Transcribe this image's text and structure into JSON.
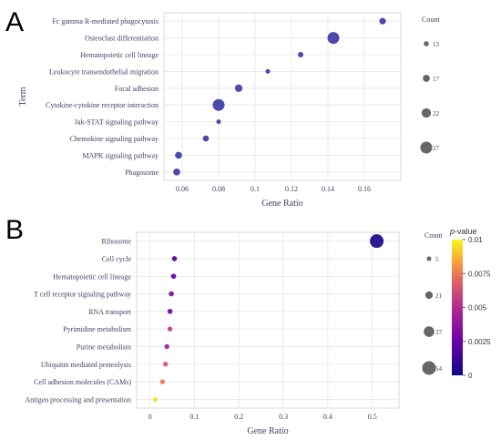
{
  "chart_data": [
    {
      "panel": "A",
      "type": "scatter",
      "xlabel": "Gene Ratio",
      "ylabel": "Term",
      "xlim": [
        0.05,
        0.18
      ],
      "xticks": [
        0.06,
        0.08,
        0.1,
        0.12,
        0.14,
        0.16
      ],
      "xtick_labels": [
        "0.06",
        "0.08",
        "0.1",
        "0.12",
        "0.14",
        "0.16"
      ],
      "grid": true,
      "legend_position": "right",
      "color": "#3b3ba8",
      "categories": [
        "Fc gamma R-mediated phagocytosis",
        "Osteoclast differentiation",
        "Hematopoietic cell lineage",
        "Leukocyte transendothelial migration",
        "Focal adhesion",
        "Cytokine-cytokine receptor interaction",
        "Jak-STAT signaling pathway",
        "Chemokine signaling pathway",
        "MAPK signaling pathway",
        "Phagosome"
      ],
      "points": [
        {
          "term": "Fc gamma R-mediated phagocytosis",
          "x": 0.17,
          "count": 16
        },
        {
          "term": "Osteoclast differentiation",
          "x": 0.143,
          "count": 27
        },
        {
          "term": "Hematopoietic cell lineage",
          "x": 0.125,
          "count": 14
        },
        {
          "term": "Leukocyte transendothelial migration",
          "x": 0.107,
          "count": 12
        },
        {
          "term": "Focal adhesion",
          "x": 0.091,
          "count": 18
        },
        {
          "term": "Cytokine-cytokine receptor interaction",
          "x": 0.08,
          "count": 27
        },
        {
          "term": "Jak-STAT signaling pathway",
          "x": 0.08,
          "count": 12
        },
        {
          "term": "Chemokine signaling pathway",
          "x": 0.073,
          "count": 15
        },
        {
          "term": "MAPK signaling pathway",
          "x": 0.058,
          "count": 17
        },
        {
          "term": "Phagosome",
          "x": 0.057,
          "count": 17
        }
      ],
      "size_legend": {
        "title": "Count",
        "values": [
          13,
          17,
          22,
          27
        ]
      }
    },
    {
      "panel": "B",
      "type": "scatter",
      "xlabel": "Gene Ratio",
      "xlim": [
        -0.03,
        0.56
      ],
      "xticks": [
        0,
        0.1,
        0.2,
        0.3,
        0.4,
        0.5
      ],
      "xtick_labels": [
        "0",
        "0.1",
        "0.2",
        "0.3",
        "0.4",
        "0.5"
      ],
      "grid": true,
      "legend_position": "right",
      "categories": [
        "Ribosome",
        "Cell cycle",
        "Hematopoietic cell lineage",
        "T cell receptor signaling pathway",
        "RNA transport",
        "Pyrimidine metabolism",
        "Purine metabolism",
        "Ubiquitin mediated proteolysis",
        "Cell adhesion molecules (CAMs)",
        "Antigen processing and presentation"
      ],
      "points": [
        {
          "term": "Ribosome",
          "x": 0.51,
          "count": 54,
          "pvalue": 0.0003
        },
        {
          "term": "Cell cycle",
          "x": 0.055,
          "count": 8,
          "pvalue": 0.0015
        },
        {
          "term": "Hematopoietic cell lineage",
          "x": 0.053,
          "count": 8,
          "pvalue": 0.0018
        },
        {
          "term": "T cell receptor signaling pathway",
          "x": 0.048,
          "count": 8,
          "pvalue": 0.0025
        },
        {
          "term": "RNA transport",
          "x": 0.045,
          "count": 8,
          "pvalue": 0.0022
        },
        {
          "term": "Pyrimidine metabolism",
          "x": 0.045,
          "count": 7,
          "pvalue": 0.0045
        },
        {
          "term": "Purine metabolism",
          "x": 0.038,
          "count": 7,
          "pvalue": 0.0035
        },
        {
          "term": "Ubiquitin mediated proteolysis",
          "x": 0.035,
          "count": 7,
          "pvalue": 0.0055
        },
        {
          "term": "Cell adhesion molecules (CAMs)",
          "x": 0.028,
          "count": 7,
          "pvalue": 0.0065
        },
        {
          "term": "Antigen processing and presentation",
          "x": 0.012,
          "count": 6,
          "pvalue": 0.0095
        }
      ],
      "size_legend": {
        "title": "Count",
        "values": [
          5,
          21,
          37,
          54
        ]
      },
      "color_legend": {
        "title_italic": "p",
        "title_rest": "-value",
        "range": [
          0,
          0.01
        ],
        "ticks": [
          0.01,
          0.0075,
          0.005,
          0.0025,
          0
        ],
        "tick_labels": [
          "0.01",
          "0.0075",
          "0.005",
          "0.0025",
          "0"
        ],
        "colors": [
          "#0d0887",
          "#6a00a8",
          "#b12a90",
          "#e16462",
          "#fca636",
          "#f0f921"
        ]
      }
    }
  ],
  "panel_labels": [
    "A",
    "B"
  ]
}
